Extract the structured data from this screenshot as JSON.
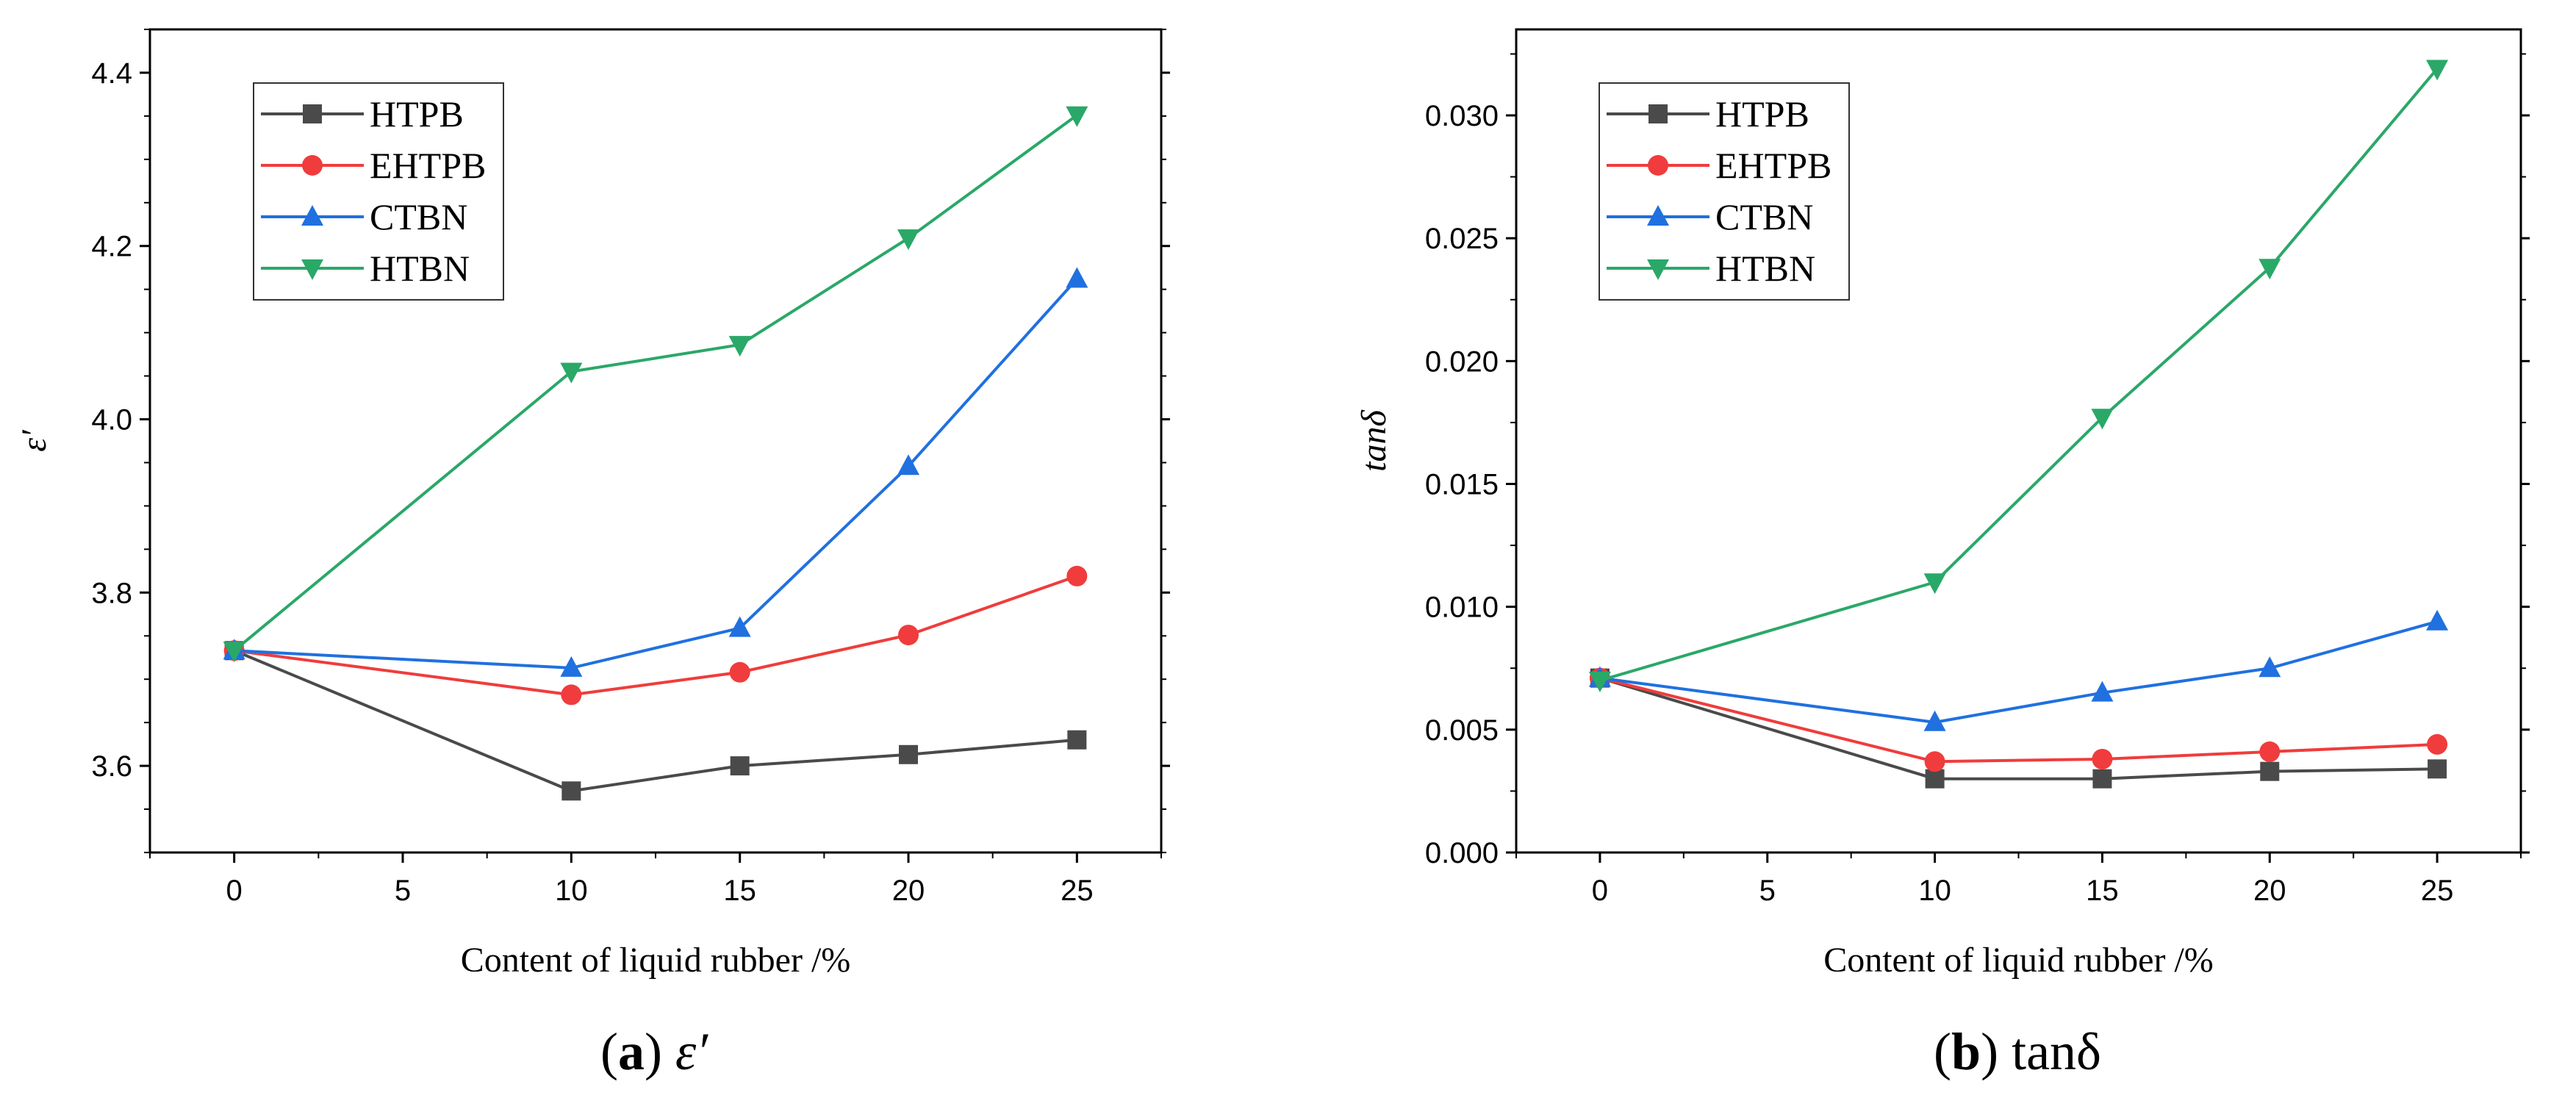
{
  "chart_data": [
    {
      "type": "line",
      "panel_label": "a",
      "caption_text": "ε′",
      "xlabel": "Content of liquid rubber /%",
      "ylabel": "ε′",
      "xlim": [
        -2.5,
        27.5
      ],
      "ylim": [
        3.5,
        4.45
      ],
      "xticks": [
        0,
        5,
        10,
        15,
        20,
        25
      ],
      "yticks": [
        3.6,
        3.8,
        4.0,
        4.2,
        4.4
      ],
      "ytick_labels": [
        "3.6",
        "3.8",
        "4.0",
        "4.2",
        "4.4"
      ],
      "yminor_step": 0.05,
      "legend_position": "top-left",
      "x": [
        0,
        10,
        15,
        20,
        25
      ],
      "series": [
        {
          "name": "HTPB",
          "color": "#4a4a4a",
          "marker": "square",
          "values": [
            3.733,
            3.571,
            3.6,
            3.613,
            3.63
          ]
        },
        {
          "name": "EHTPB",
          "color": "#f03c3c",
          "marker": "circle",
          "values": [
            3.733,
            3.682,
            3.708,
            3.751,
            3.819
          ]
        },
        {
          "name": "CTBN",
          "color": "#2070e0",
          "marker": "triangle-up",
          "values": [
            3.733,
            3.713,
            3.759,
            3.946,
            4.162
          ]
        },
        {
          "name": "HTBN",
          "color": "#2aa868",
          "marker": "triangle-down",
          "values": [
            3.733,
            4.055,
            4.086,
            4.209,
            4.351
          ]
        }
      ]
    },
    {
      "type": "line",
      "panel_label": "b",
      "caption_text": "tanδ",
      "xlabel": "Content of liquid rubber /%",
      "ylabel": "tanδ",
      "xlim": [
        -2.5,
        27.5
      ],
      "ylim": [
        0.0,
        0.0335
      ],
      "xticks": [
        0,
        5,
        10,
        15,
        20,
        25
      ],
      "yticks": [
        0.0,
        0.005,
        0.01,
        0.015,
        0.02,
        0.025,
        0.03
      ],
      "ytick_labels": [
        "0.000",
        "0.005",
        "0.010",
        "0.015",
        "0.020",
        "0.025",
        "0.030"
      ],
      "yminor_step": 0.0025,
      "legend_position": "top-left",
      "x": [
        0,
        10,
        15,
        20,
        25
      ],
      "series": [
        {
          "name": "HTPB",
          "color": "#4a4a4a",
          "marker": "square",
          "values": [
            0.0071,
            0.003,
            0.003,
            0.0033,
            0.0034
          ]
        },
        {
          "name": "EHTPB",
          "color": "#f03c3c",
          "marker": "circle",
          "values": [
            0.0071,
            0.0037,
            0.0038,
            0.0041,
            0.0044
          ]
        },
        {
          "name": "CTBN",
          "color": "#2070e0",
          "marker": "triangle-up",
          "values": [
            0.0071,
            0.0053,
            0.0065,
            0.0075,
            0.0094
          ]
        },
        {
          "name": "HTBN",
          "color": "#2aa868",
          "marker": "triangle-down",
          "values": [
            0.007,
            0.011,
            0.0177,
            0.0238,
            0.0319
          ]
        }
      ]
    }
  ]
}
